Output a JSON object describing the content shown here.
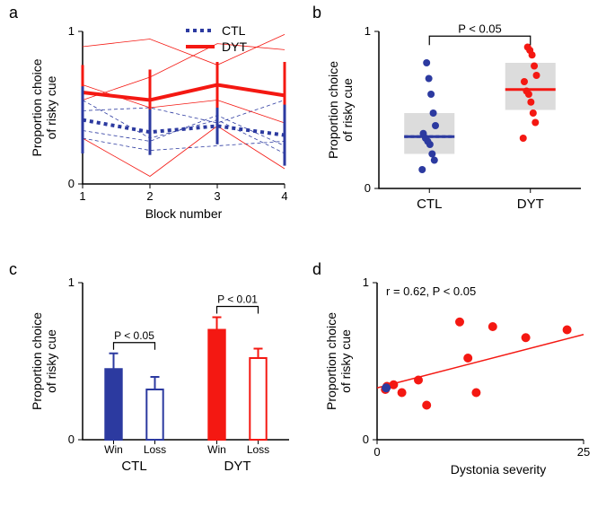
{
  "colors": {
    "ctl": "#2c3aa0",
    "dyt": "#f41812",
    "bg": "#ffffff",
    "box_fill": "#dcdcdc",
    "black": "#000000"
  },
  "labels": {
    "a": "a",
    "b": "b",
    "c": "c",
    "d": "d",
    "y_shared": "Proportion choice\nof risky cue",
    "block_x": "Block number",
    "ctl": "CTL",
    "dyt": "DYT",
    "win": "Win",
    "loss": "Loss",
    "dyst_x": "Dystonia severity",
    "p05": "P < 0.05",
    "p01": "P < 0.01",
    "corr": "r = 0.62, P < 0.05"
  },
  "panel_a": {
    "type": "line",
    "xlim": [
      1,
      4
    ],
    "ylim": [
      0,
      1
    ],
    "xticks": [
      1,
      2,
      3,
      4
    ],
    "yticks": [
      0,
      1
    ],
    "ctl_mean": [
      0.42,
      0.34,
      0.38,
      0.32
    ],
    "ctl_err": [
      0.22,
      0.15,
      0.12,
      0.2
    ],
    "dyt_mean": [
      0.6,
      0.55,
      0.65,
      0.58
    ],
    "dyt_err": [
      0.18,
      0.2,
      0.15,
      0.22
    ],
    "ctl_traces": [
      [
        0.55,
        0.3,
        0.42,
        0.2
      ],
      [
        0.3,
        0.22,
        0.25,
        0.28
      ],
      [
        0.48,
        0.5,
        0.4,
        0.55
      ],
      [
        0.35,
        0.28,
        0.45,
        0.25
      ]
    ],
    "dyt_traces": [
      [
        0.9,
        0.95,
        0.78,
        0.98
      ],
      [
        0.55,
        0.7,
        0.92,
        0.88
      ],
      [
        0.3,
        0.05,
        0.38,
        0.1
      ],
      [
        0.65,
        0.5,
        0.55,
        0.4
      ]
    ],
    "line_width_mean": 4,
    "line_width_trace": 0.8,
    "font_size": 14
  },
  "panel_b": {
    "type": "scatter-box",
    "ylim": [
      0,
      1
    ],
    "yticks": [
      0,
      1
    ],
    "xticks": [
      "CTL",
      "DYT"
    ],
    "ctl_points": [
      0.12,
      0.18,
      0.22,
      0.28,
      0.3,
      0.32,
      0.35,
      0.4,
      0.48,
      0.6,
      0.7,
      0.8
    ],
    "dyt_points": [
      0.32,
      0.42,
      0.48,
      0.55,
      0.6,
      0.62,
      0.68,
      0.72,
      0.78,
      0.85,
      0.88,
      0.9
    ],
    "ctl_median": 0.33,
    "dyt_median": 0.63,
    "ctl_box": [
      0.22,
      0.48
    ],
    "dyt_box": [
      0.5,
      0.8
    ],
    "marker_size": 4
  },
  "panel_c": {
    "type": "bar",
    "ylim": [
      0,
      1
    ],
    "yticks": [
      0,
      1
    ],
    "groups": [
      {
        "name": "CTL",
        "color": "#2c3aa0",
        "win": 0.45,
        "win_err": 0.1,
        "loss": 0.32,
        "loss_err": 0.08,
        "p": "P < 0.05"
      },
      {
        "name": "DYT",
        "color": "#f41812",
        "win": 0.7,
        "win_err": 0.08,
        "loss": 0.52,
        "loss_err": 0.06,
        "p": "P < 0.01"
      }
    ],
    "bar_width": 0.32,
    "line_width": 2
  },
  "panel_d": {
    "type": "scatter-fit",
    "xlim": [
      0,
      25
    ],
    "ylim": [
      0,
      1
    ],
    "xticks": [
      0,
      25
    ],
    "yticks": [
      0,
      1
    ],
    "points": [
      [
        1,
        0.32
      ],
      [
        1.2,
        0.34
      ],
      [
        2,
        0.35
      ],
      [
        3,
        0.3
      ],
      [
        5,
        0.38
      ],
      [
        6,
        0.22
      ],
      [
        10,
        0.75
      ],
      [
        11,
        0.52
      ],
      [
        12,
        0.3
      ],
      [
        14,
        0.72
      ],
      [
        18,
        0.65
      ],
      [
        23,
        0.7
      ]
    ],
    "special_point": [
      1.1,
      0.33
    ],
    "fit": [
      [
        0,
        0.33
      ],
      [
        25,
        0.67
      ]
    ],
    "marker_size": 5,
    "line_width": 1.5
  }
}
